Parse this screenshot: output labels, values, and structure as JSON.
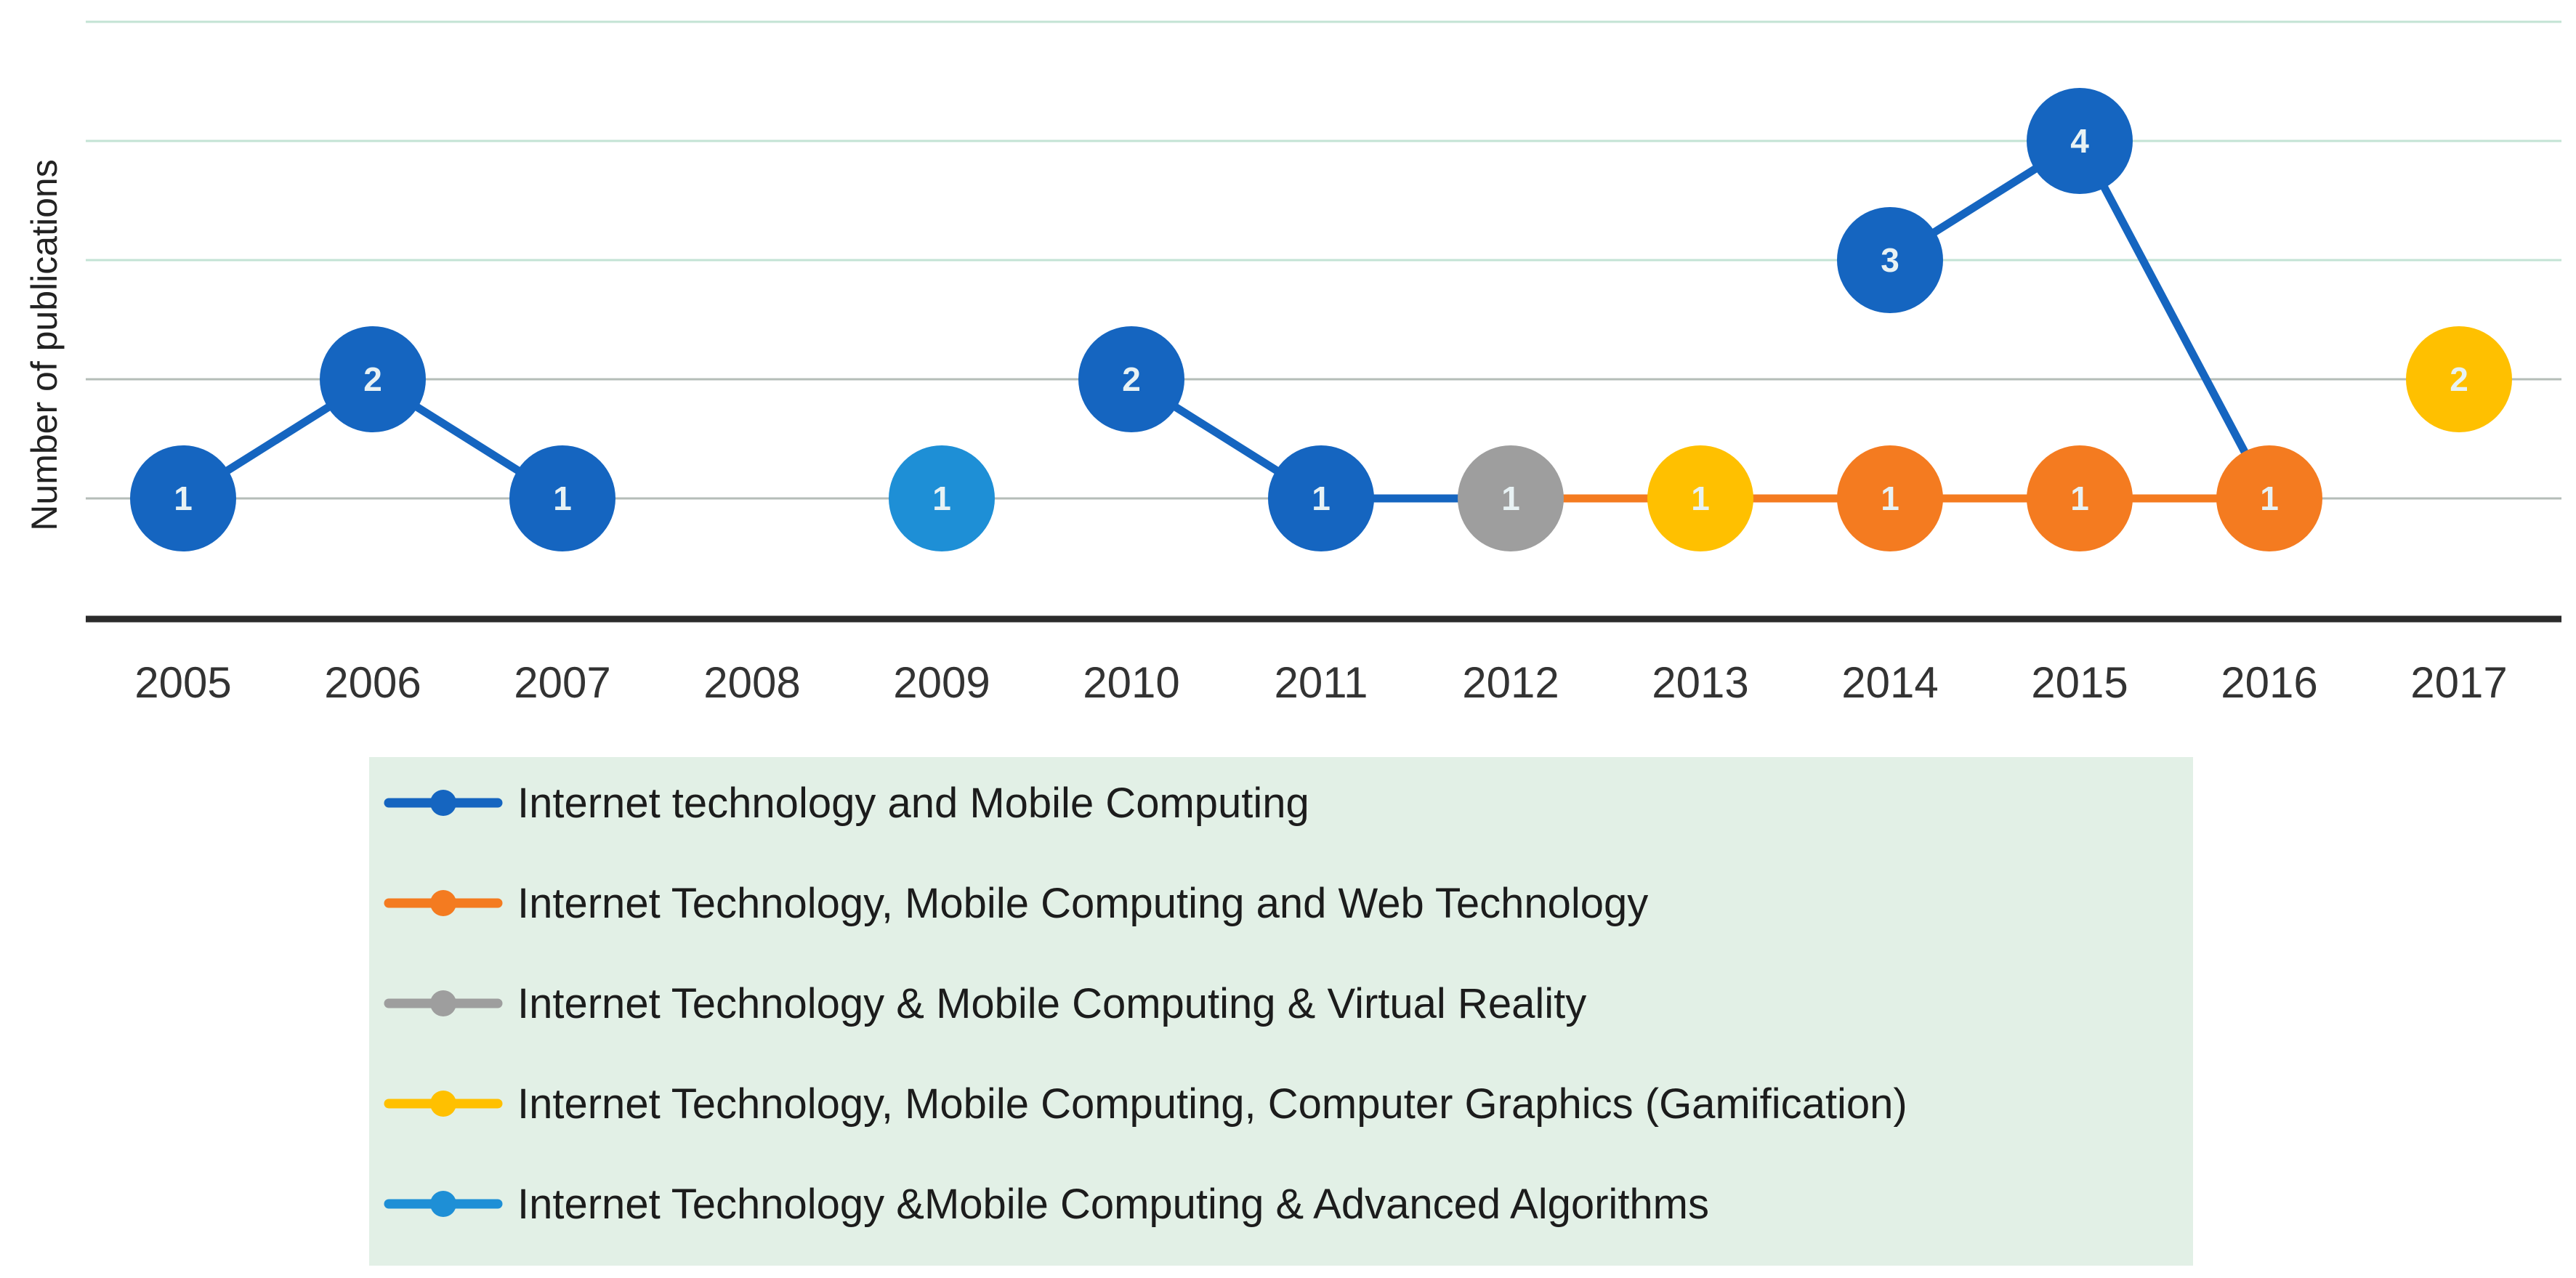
{
  "chart_data": {
    "type": "line",
    "title": "",
    "xlabel": "",
    "ylabel": "Number of publications",
    "ylim": [
      0,
      5
    ],
    "gridlines": true,
    "legend_position": "bottom",
    "categories": [
      "2005",
      "2006",
      "2007",
      "2008",
      "2009",
      "2010",
      "2011",
      "2012",
      "2013",
      "2014",
      "2015",
      "2016",
      "2017"
    ],
    "series": [
      {
        "name": "Internet technology and Mobile Computing",
        "color": "#1565c0",
        "segments": [
          [
            {
              "x": "2005",
              "y": 1
            },
            {
              "x": "2006",
              "y": 2
            },
            {
              "x": "2007",
              "y": 1
            }
          ],
          [
            {
              "x": "2010",
              "y": 2
            },
            {
              "x": "2011",
              "y": 1
            }
          ],
          [
            {
              "x": "2014",
              "y": 3
            },
            {
              "x": "2015",
              "y": 4
            },
            {
              "x": "2016",
              "y": 1
            }
          ]
        ],
        "points": [
          {
            "x": "2005",
            "y": 1,
            "label": "1"
          },
          {
            "x": "2006",
            "y": 2,
            "label": "2"
          },
          {
            "x": "2007",
            "y": 1,
            "label": "1"
          },
          {
            "x": "2010",
            "y": 2,
            "label": "2"
          },
          {
            "x": "2011",
            "y": 1,
            "label": "1"
          },
          {
            "x": "2014",
            "y": 3,
            "label": "3"
          },
          {
            "x": "2015",
            "y": 4,
            "label": "4"
          }
        ]
      },
      {
        "name": "Internet Technology, Mobile Computing and Web Technology",
        "color": "#f47b20",
        "segments": [
          [
            {
              "x": "2014",
              "y": 1
            },
            {
              "x": "2015",
              "y": 1
            },
            {
              "x": "2016",
              "y": 1
            }
          ]
        ],
        "points": [
          {
            "x": "2014",
            "y": 1,
            "label": "1"
          },
          {
            "x": "2015",
            "y": 1,
            "label": "1"
          },
          {
            "x": "2016",
            "y": 1,
            "label": "1"
          }
        ]
      },
      {
        "name": "Internet Technology &  Mobile Computing & Virtual Reality",
        "color": "#9e9e9e",
        "segments": [],
        "points": [
          {
            "x": "2012",
            "y": 1,
            "label": "1"
          }
        ]
      },
      {
        "name": "Internet Technology, Mobile Computing, Computer Graphics (Gamification)",
        "color": "#ffc000",
        "segments": [],
        "points": [
          {
            "x": "2013",
            "y": 1,
            "label": "1"
          },
          {
            "x": "2017",
            "y": 2,
            "label": "2"
          }
        ]
      },
      {
        "name": "Internet Technology &Mobile Computing & Advanced Algorithms",
        "color": "#1e8fd6",
        "segments": [],
        "points": [
          {
            "x": "2009",
            "y": 1,
            "label": "1"
          }
        ]
      }
    ],
    "connectors": [
      {
        "from": {
          "x": "2011",
          "y": 1
        },
        "to": {
          "x": "2012",
          "y": 1
        },
        "color": "#1565c0"
      },
      {
        "from": {
          "x": "2012",
          "y": 1
        },
        "to": {
          "x": "2013",
          "y": 1
        },
        "color": "#f47b20"
      },
      {
        "from": {
          "x": "2013",
          "y": 1
        },
        "to": {
          "x": "2014",
          "y": 1
        },
        "color": "#f47b20"
      }
    ]
  }
}
